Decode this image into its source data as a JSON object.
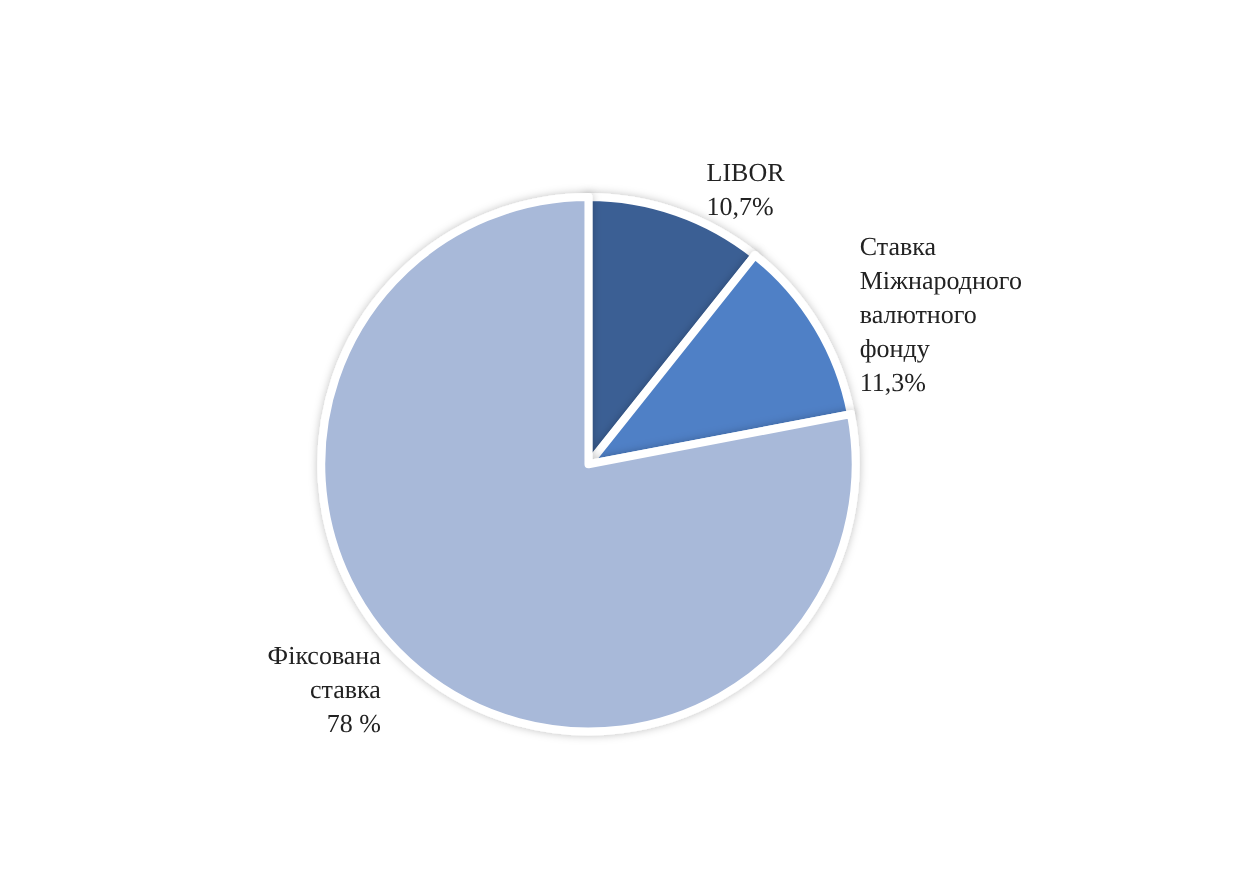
{
  "chart_data": {
    "type": "pie",
    "categories": [
      "LIBOR",
      "Ставка Міжнародного валютного фонду",
      "Фіксована ставка"
    ],
    "values": [
      10.7,
      11.3,
      78
    ],
    "colors": [
      "#3a5e94",
      "#4f80c6",
      "#a8b9d9"
    ],
    "value_labels": [
      "10,7%",
      "11,3%",
      "78 %"
    ],
    "legend": false
  }
}
